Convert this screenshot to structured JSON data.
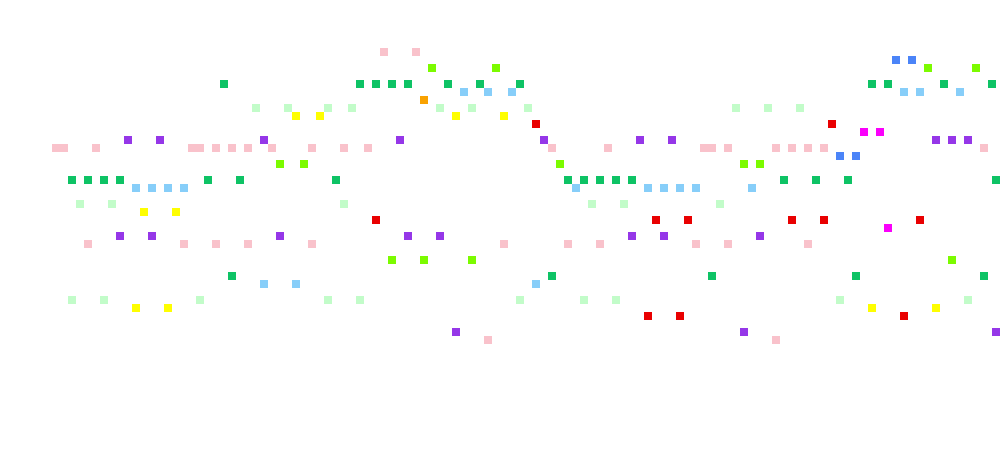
{
  "palette": {
    "a": "#f9c2cb",
    "b": "#0ec365",
    "c": "#7cfb00",
    "d": "#c2fcc9",
    "e": "#9537e8",
    "f": "#f9a201",
    "g": "#fefe01",
    "h": "#87cef9",
    "i": "#e90001",
    "j": "#4b84f8",
    "k": "#fa00fb"
  },
  "columns": [
    {
      "a": [
        36
      ],
      "d": [
        44
      ]
    },
    {
      "a": [
        36
      ],
      "d": [
        44
      ],
      "b": [
        31
      ]
    },
    {},
    {
      "b": [
        31
      ],
      "d": [
        44
      ]
    },
    {
      "a": [
        36
      ],
      "e": [
        39
      ],
      "g": [
        46
      ]
    },
    {
      "b": [
        31
      ]
    },
    {
      "d": [
        33
      ],
      "e": [
        42
      ],
      "d2": [
        52
      ]
    },
    {
      "a": [
        40
      ],
      "d": [
        44
      ],
      "g": [
        38
      ]
    },
    {
      "e": [
        36
      ],
      "a": [
        42
      ],
      "d": [
        45
      ]
    },
    {
      "a": [
        40
      ],
      "e": [
        44
      ]
    },
    {
      "a": [
        36
      ],
      "e": [
        39
      ],
      "g": [
        38
      ]
    },
    {
      "b": [
        31
      ],
      "h": [
        32
      ]
    },
    {
      "a": [
        44
      ],
      "h": [
        32
      ],
      "d": [
        45
      ]
    },
    {
      "a": [
        36
      ],
      "a2": [
        44
      ],
      "b": [
        48
      ]
    },
    {
      "a": [
        36
      ],
      "b": [
        31
      ]
    },
    {
      "a": [
        36
      ],
      "d": [
        33
      ],
      "h": [
        49
      ]
    },
    {
      "e": [
        43
      ],
      "a": [
        40
      ]
    },
    {
      "e": [
        35
      ],
      "a": [
        36
      ],
      "c": [
        41
      ]
    },
    {
      "d": [
        33
      ],
      "a": [
        42
      ],
      "h": [
        49
      ],
      "g": [
        38
      ]
    }
  ]
}
